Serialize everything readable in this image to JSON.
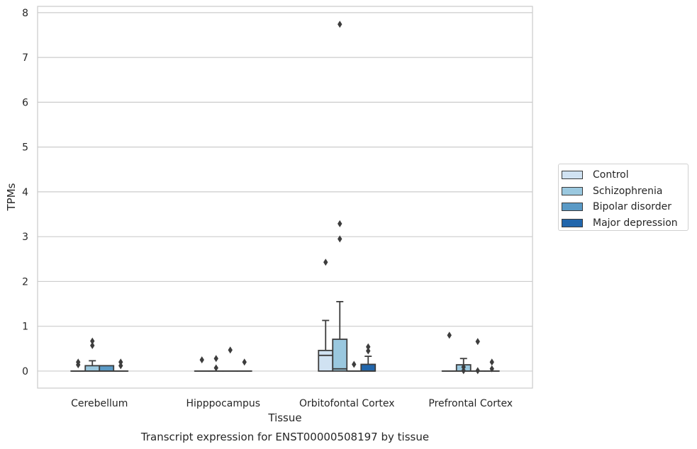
{
  "chart_data": {
    "type": "box",
    "title": "Transcript expression for ENST00000508197 by tissue",
    "xlabel": "Tissue",
    "ylabel": "TPMs",
    "ylim": [
      -0.38,
      8.14
    ],
    "yticks": [
      0,
      1,
      2,
      3,
      4,
      5,
      6,
      7,
      8
    ],
    "grid": true,
    "legend_position": "right",
    "categories": [
      "Cerebellum",
      "Hipppocampus",
      "Orbitofontal Cortex",
      "Prefrontal Cortex"
    ],
    "series": [
      {
        "name": "Control",
        "color": "#d0e2f2",
        "boxes": [
          {
            "q1": 0,
            "median": 0,
            "q3": 0,
            "whisker_low": 0,
            "whisker_high": 0,
            "outliers": [
              0.14,
              0.2
            ]
          },
          {
            "q1": 0,
            "median": 0,
            "q3": 0,
            "whisker_low": 0,
            "whisker_high": 0,
            "outliers": [
              0.25
            ]
          },
          {
            "q1": 0,
            "median": 0.35,
            "q3": 0.46,
            "whisker_low": 0,
            "whisker_high": 1.13,
            "outliers": [
              2.43
            ]
          },
          {
            "q1": 0,
            "median": 0,
            "q3": 0,
            "whisker_low": 0,
            "whisker_high": 0,
            "outliers": [
              0.8
            ]
          }
        ]
      },
      {
        "name": "Schizophrenia",
        "color": "#9ac8df",
        "boxes": [
          {
            "q1": 0,
            "median": 0,
            "q3": 0.12,
            "whisker_low": 0,
            "whisker_high": 0.23,
            "outliers": [
              0.57,
              0.67
            ]
          },
          {
            "q1": 0,
            "median": 0,
            "q3": 0,
            "whisker_low": 0,
            "whisker_high": 0,
            "outliers": [
              0.07,
              0.28
            ]
          },
          {
            "q1": 0,
            "median": 0.05,
            "q3": 0.71,
            "whisker_low": 0,
            "whisker_high": 1.55,
            "outliers": [
              2.95,
              3.29,
              7.74
            ]
          },
          {
            "q1": 0,
            "median": 0,
            "q3": 0.14,
            "whisker_low": 0,
            "whisker_high": 0.28,
            "outliers": [
              0.01,
              0.09
            ]
          }
        ]
      },
      {
        "name": "Bipolar disorder",
        "color": "#5a9ac6",
        "boxes": [
          {
            "q1": 0,
            "median": 0,
            "q3": 0.12,
            "whisker_low": 0,
            "whisker_high": 0.12,
            "outliers": []
          },
          {
            "q1": 0,
            "median": 0,
            "q3": 0,
            "whisker_low": 0,
            "whisker_high": 0,
            "outliers": [
              0.47
            ]
          },
          {
            "q1": 0,
            "median": 0,
            "q3": 0,
            "whisker_low": 0,
            "whisker_high": 0,
            "outliers": [
              0.15
            ]
          },
          {
            "q1": 0,
            "median": 0,
            "q3": 0,
            "whisker_low": 0,
            "whisker_high": 0,
            "outliers": [
              0.01,
              0.66
            ]
          }
        ]
      },
      {
        "name": "Major depression",
        "color": "#2166ac",
        "boxes": [
          {
            "q1": 0,
            "median": 0,
            "q3": 0,
            "whisker_low": 0,
            "whisker_high": 0,
            "outliers": [
              0.12,
              0.2
            ]
          },
          {
            "q1": 0,
            "median": 0,
            "q3": 0,
            "whisker_low": 0,
            "whisker_high": 0,
            "outliers": [
              0.2
            ]
          },
          {
            "q1": 0,
            "median": 0,
            "q3": 0.15,
            "whisker_low": 0,
            "whisker_high": 0.33,
            "outliers": [
              0.45,
              0.54
            ]
          },
          {
            "q1": 0,
            "median": 0,
            "q3": 0,
            "whisker_low": 0,
            "whisker_high": 0,
            "outliers": [
              0.05,
              0.2
            ]
          }
        ]
      }
    ]
  }
}
